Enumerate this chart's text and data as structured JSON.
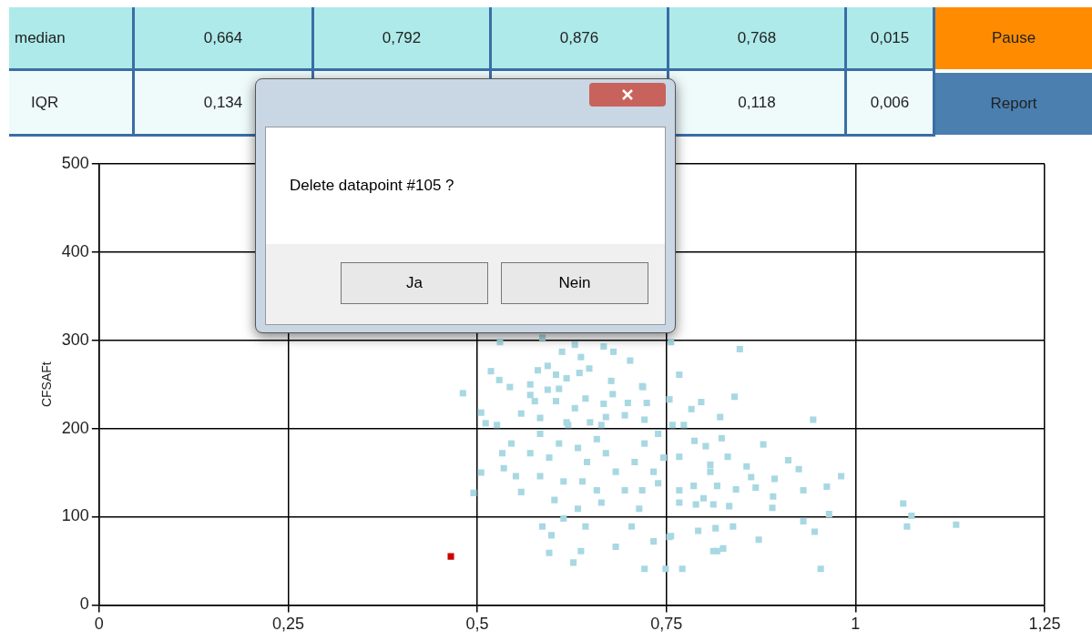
{
  "chart_data": {
    "type": "scatter",
    "ylabel": "CFSAFt",
    "annotations": [
      "median",
      "0,664",
      "0,792",
      "0,876",
      "0,768",
      "0,015",
      "IQR",
      "0,134",
      "0,118",
      "0,006",
      "Pause",
      "Report",
      "Delete datapoint #105 ?",
      "Ja",
      "Nein"
    ],
    "xlim": [
      0,
      1.25
    ],
    "xticks": [
      0,
      {
        "value": 0.25,
        "label": "0,25"
      },
      {
        "value": 0.5,
        "label": "0,5"
      },
      {
        "value": 0.75,
        "label": "0,75"
      },
      1,
      {
        "value": 1.25,
        "label": "1,25"
      }
    ],
    "ylim": [
      0,
      500
    ],
    "yticks": [
      0,
      100,
      200,
      300,
      400,
      500
    ],
    "grid": true,
    "legend": false,
    "marker": "square",
    "series": [
      {
        "color": "#a8d8e2",
        "x": [
          0.53,
          0.586,
          0.629,
          0.667,
          0.68,
          0.702,
          0.612,
          0.637,
          0.648,
          0.593,
          0.58,
          0.604,
          0.618,
          0.635,
          0.518,
          0.529,
          0.543,
          0.57,
          0.593,
          0.608,
          0.677,
          0.718,
          0.481,
          0.57,
          0.679,
          0.643,
          0.667,
          0.699,
          0.724,
          0.604,
          0.629,
          0.754,
          0.767,
          0.783,
          0.796,
          0.821,
          0.505,
          0.511,
          0.558,
          0.583,
          0.618,
          0.649,
          0.67,
          0.695,
          0.721,
          0.773,
          0.505,
          0.495,
          0.535,
          0.558,
          0.586,
          0.598,
          0.595,
          0.614,
          0.627,
          0.637,
          0.643,
          0.664,
          0.683,
          0.704,
          0.721,
          0.733,
          0.749,
          0.754,
          0.771,
          0.792,
          0.815,
          0.817,
          0.825,
          0.718,
          0.739,
          0.767,
          0.767,
          0.799,
          0.808,
          0.756,
          0.847,
          0.719,
          0.84,
          0.944,
          0.787,
          0.802,
          0.823,
          0.878,
          0.767,
          0.831,
          0.856,
          0.911,
          0.925,
          0.981,
          0.862,
          0.893,
          0.868,
          0.842,
          0.931,
          0.962,
          0.817,
          0.808,
          0.786,
          0.891,
          0.89,
          0.833,
          0.812,
          0.789,
          0.965,
          0.931,
          0.946,
          0.872,
          0.838,
          0.756,
          0.812,
          0.954,
          1.063,
          1.074,
          1.068,
          1.133,
          0.583,
          0.608,
          0.633,
          0.658,
          0.595,
          0.62,
          0.645,
          0.57,
          0.67,
          0.683,
          0.708,
          0.721,
          0.583,
          0.614,
          0.639,
          0.545,
          0.533,
          0.695,
          0.714,
          0.733,
          0.746,
          0.658,
          0.633,
          0.602,
          0.551,
          0.526,
          0.576,
          0.664,
          0.739,
          0.758
        ],
        "values": [
          298,
          303,
          295,
          293,
          287,
          277,
          287,
          281,
          268,
          271,
          266,
          261,
          257,
          263,
          265,
          255,
          247,
          250,
          244,
          245,
          254,
          248,
          240,
          238,
          239,
          234,
          228,
          229,
          229,
          231,
          223,
          233,
          261,
          222,
          230,
          213,
          218,
          206,
          217,
          212,
          207,
          207,
          213,
          215,
          210,
          204,
          150,
          127,
          155,
          128,
          89,
          79,
          59,
          98,
          48,
          61,
          89,
          116,
          66,
          89,
          41,
          72,
          41,
          77,
          41,
          84,
          87,
          61,
          64,
          130,
          138,
          130,
          116,
          121,
          151,
          298,
          290,
          247,
          236,
          210,
          186,
          180,
          189,
          182,
          168,
          168,
          157,
          164,
          154,
          146,
          145,
          143,
          133,
          131,
          130,
          134,
          135,
          159,
          135,
          123,
          110,
          112,
          114,
          114,
          103,
          95,
          83,
          74,
          89,
          78,
          61,
          41,
          115,
          101,
          89,
          91,
          194,
          183,
          178,
          188,
          167,
          204,
          162,
          172,
          172,
          151,
          162,
          183,
          146,
          140,
          140,
          183,
          172,
          130,
          109,
          151,
          167,
          130,
          109,
          119,
          146,
          204,
          231,
          204,
          194,
          204
        ]
      },
      {
        "color": "#cc0000",
        "x": [
          0.465
        ],
        "values": [
          55
        ]
      }
    ]
  }
}
